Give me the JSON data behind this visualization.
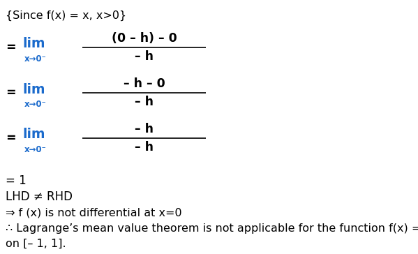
{
  "background_color": "#ffffff",
  "figsize": [
    5.99,
    3.64
  ],
  "dpi": 100,
  "text_color": "#000000",
  "blue_color": "#1a6acc",
  "line1": "{Since f(x) = x, x>0}",
  "num1": "(0 – h) – 0",
  "den1": "– h",
  "num2": "– h – 0",
  "den2": "– h",
  "num3": "– h",
  "den3": "– h",
  "sub": "x→0⁻",
  "eq1": "= 1",
  "eq2": "LHD ≠ RHD",
  "eq3": "⇒ f (x) is not differential at x=0",
  "eq4": "∴ Lagrange’s mean value theorem is not applicable for the function f(x) = |x|",
  "eq5": "on [– 1, 1]."
}
